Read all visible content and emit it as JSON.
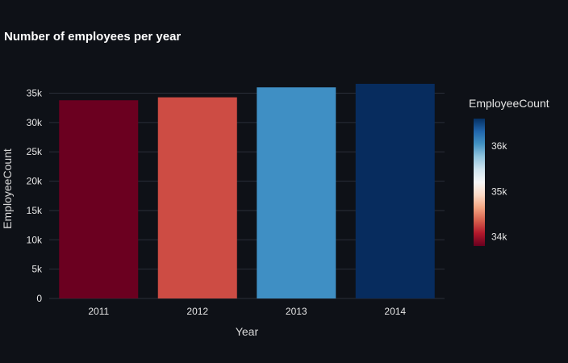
{
  "chart_data": {
    "type": "bar",
    "title": "Number of employees per year",
    "xlabel": "Year",
    "ylabel": "EmployeeCount",
    "categories": [
      "2011",
      "2012",
      "2013",
      "2014"
    ],
    "values": [
      33800,
      34300,
      36000,
      36600
    ],
    "ylim": [
      0,
      37000
    ],
    "yticks": [
      0,
      5000,
      10000,
      15000,
      20000,
      25000,
      30000,
      35000
    ],
    "ytick_labels": [
      "0",
      "5k",
      "10k",
      "15k",
      "20k",
      "25k",
      "30k",
      "35k"
    ],
    "grid": true,
    "bar_colors": [
      "#6b0020",
      "#cd4c44",
      "#3f8fc4",
      "#072c5e"
    ],
    "colorbar": {
      "title": "EmployeeCount",
      "range": [
        33800,
        36600
      ],
      "ticks": [
        34000,
        35000,
        36000
      ],
      "tick_labels": [
        "34k",
        "35k",
        "36k"
      ],
      "colorscale": [
        "#67001f",
        "#b2182b",
        "#d6604d",
        "#f4a582",
        "#fddbc7",
        "#f7f7f7",
        "#d1e5f0",
        "#92c5de",
        "#4393c3",
        "#2166ac",
        "#053061"
      ],
      "placement": "right"
    },
    "background": "#0e1117"
  }
}
